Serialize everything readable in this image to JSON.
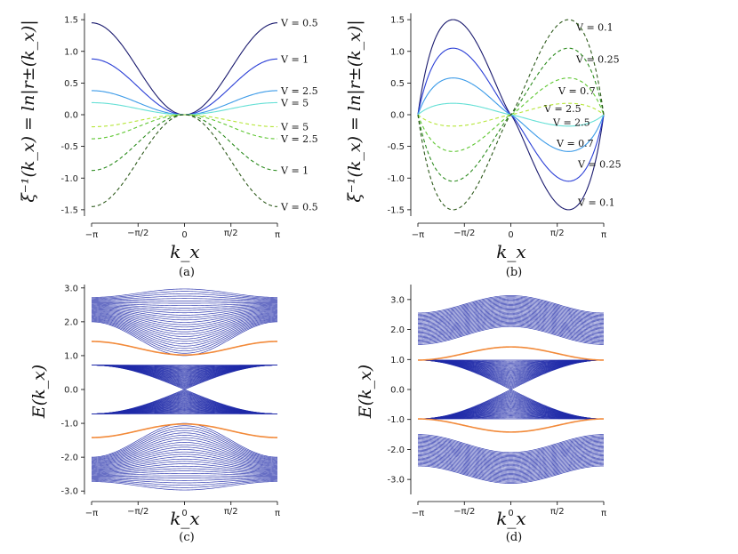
{
  "chart_data": [
    {
      "id": "a",
      "type": "line",
      "caption": "(a)",
      "xlabel": "k_x",
      "ylabel": "ξ⁻¹(k_x) = ln|r±(k_x)|",
      "xlim": [
        -3.1416,
        3.1416
      ],
      "ylim": [
        -1.6,
        1.6
      ],
      "xticks": [
        "−π",
        "−π/2",
        "0",
        "π/2",
        "π"
      ],
      "yticks": [
        "1.5",
        "1.0",
        "0.5",
        "0.0",
        "-0.5",
        "-1.0",
        "-1.5"
      ],
      "series": [
        {
          "name": "V = 0.5",
          "branch": "+",
          "amplitude": 1.45,
          "color": "#1a1a6e",
          "style": "solid"
        },
        {
          "name": "V = 1",
          "branch": "+",
          "amplitude": 0.88,
          "color": "#2b3fd6",
          "style": "solid"
        },
        {
          "name": "V = 2.5",
          "branch": "+",
          "amplitude": 0.38,
          "color": "#3c9be8",
          "style": "solid"
        },
        {
          "name": "V = 5",
          "branch": "+",
          "amplitude": 0.19,
          "color": "#66e0d6",
          "style": "solid"
        },
        {
          "name": "V = 5",
          "branch": "-",
          "amplitude": 0.19,
          "color": "#b6e639",
          "style": "dashed"
        },
        {
          "name": "V = 2.5",
          "branch": "-",
          "amplitude": 0.38,
          "color": "#5fc732",
          "style": "dashed"
        },
        {
          "name": "V = 1",
          "branch": "-",
          "amplitude": 0.88,
          "color": "#2d8c1f",
          "style": "dashed"
        },
        {
          "name": "V = 0.5",
          "branch": "-",
          "amplitude": 1.45,
          "color": "#2e5a1c",
          "style": "dashed"
        }
      ]
    },
    {
      "id": "b",
      "type": "line",
      "caption": "(b)",
      "xlabel": "k_x",
      "ylabel": "ξ⁻¹(k_x) = ln|r±(k_x)|",
      "xlim": [
        -3.1416,
        3.1416
      ],
      "ylim": [
        -1.6,
        1.6
      ],
      "xticks": [
        "−π",
        "−π/2",
        "0",
        "π/2",
        "π"
      ],
      "yticks": [
        "1.5",
        "1.0",
        "0.5",
        "0.0",
        "-0.5",
        "-1.0",
        "-1.5"
      ],
      "series": [
        {
          "name": "V = 0.1",
          "branch": "+",
          "amplitude": 1.5,
          "color": "#1a1a6e",
          "style": "solid"
        },
        {
          "name": "V = 0.25",
          "branch": "+",
          "amplitude": 1.05,
          "color": "#2b3fd6",
          "style": "solid"
        },
        {
          "name": "V = 0.7",
          "branch": "+",
          "amplitude": 0.58,
          "color": "#3c9be8",
          "style": "solid"
        },
        {
          "name": "V = 2.5",
          "branch": "+",
          "amplitude": 0.18,
          "color": "#66e0d6",
          "style": "solid"
        },
        {
          "name": "V = 2.5",
          "branch": "-",
          "amplitude": 0.18,
          "color": "#b6e639",
          "style": "dashed"
        },
        {
          "name": "V = 0.7",
          "branch": "-",
          "amplitude": 0.58,
          "color": "#5fc732",
          "style": "dashed"
        },
        {
          "name": "V = 0.25",
          "branch": "-",
          "amplitude": 1.05,
          "color": "#2d8c1f",
          "style": "dashed"
        },
        {
          "name": "V = 0.1",
          "branch": "-",
          "amplitude": 1.5,
          "color": "#2e5a1c",
          "style": "dashed"
        }
      ]
    },
    {
      "id": "c",
      "type": "line",
      "caption": "(c)",
      "xlabel": "k_x",
      "ylabel": "E(k_x)",
      "xlim": [
        -3.1416,
        3.1416
      ],
      "ylim": [
        -3.1,
        3.1
      ],
      "xticks": [
        "−π",
        "−π/2",
        "0",
        "π/2",
        "π"
      ],
      "yticks": [
        "3.0",
        "2.0",
        "1.0",
        "0.0",
        "-1.0",
        "-2.0",
        "-3.0"
      ],
      "bulk_bands": [
        {
          "name": "upper band",
          "top_at_0": 2.97,
          "top_at_pi": 2.72,
          "bottom_at_0": 1.0,
          "bottom_at_pi": 2.0
        },
        {
          "name": "middle band",
          "outer_at_0": 0.72,
          "outer_at_pi": 0.72,
          "inner_at_0": 0.0,
          "inner_at_pi": 0.72
        },
        {
          "name": "lower band",
          "top_at_0": -1.0,
          "top_at_pi": -2.0,
          "bottom_at_0": -2.97,
          "bottom_at_pi": -2.72
        }
      ],
      "edge_states": [
        {
          "name": "upper edge state",
          "at_0": 1.02,
          "at_pi": 1.42,
          "color": "#f28a3a"
        },
        {
          "name": "lower edge state",
          "at_0": -1.02,
          "at_pi": -1.42,
          "color": "#f28a3a"
        }
      ]
    },
    {
      "id": "d",
      "type": "line",
      "caption": "(d)",
      "xlabel": "k_x",
      "ylabel": "E(k_x)",
      "xlim": [
        -3.1416,
        3.1416
      ],
      "ylim": [
        -3.5,
        3.5
      ],
      "xticks": [
        "−π",
        "−π/2",
        "0",
        "π/2",
        "π"
      ],
      "yticks": [
        "3.0",
        "2.0",
        "1.0",
        "0.0",
        "-1.0",
        "-2.0",
        "-3.0"
      ],
      "bulk_bands": [
        {
          "name": "upper band",
          "top_at_0": 3.13,
          "top_at_pi": 2.55,
          "bottom_at_0": 2.1,
          "bottom_at_pi": 1.5
        },
        {
          "name": "middle band",
          "outer_at_0": 0.98,
          "outer_at_pi": 0.98,
          "inner_at_0": 0.0,
          "inner_at_pi": 0.98
        },
        {
          "name": "lower band",
          "top_at_0": -2.1,
          "top_at_pi": -1.5,
          "bottom_at_0": -3.13,
          "bottom_at_pi": -2.55
        }
      ],
      "edge_states": [
        {
          "name": "upper edge state",
          "at_0": 1.42,
          "at_pi": 0.98,
          "color": "#f28a3a"
        },
        {
          "name": "lower edge state",
          "at_0": -1.42,
          "at_pi": -0.98,
          "color": "#f28a3a"
        }
      ]
    }
  ]
}
